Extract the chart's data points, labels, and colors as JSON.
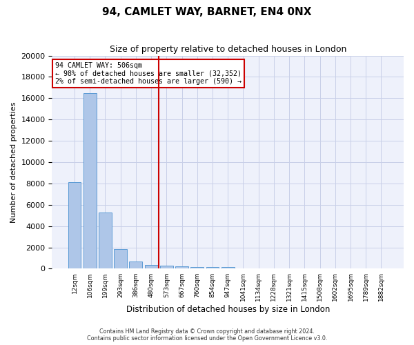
{
  "title": "94, CAMLET WAY, BARNET, EN4 0NX",
  "subtitle": "Size of property relative to detached houses in London",
  "xlabel": "Distribution of detached houses by size in London",
  "ylabel": "Number of detached properties",
  "bar_values": [
    8100,
    16500,
    5300,
    1850,
    650,
    330,
    290,
    230,
    185,
    185,
    145,
    0,
    0,
    0,
    0,
    0,
    0,
    0,
    0,
    0,
    0
  ],
  "categories": [
    "12sqm",
    "106sqm",
    "199sqm",
    "293sqm",
    "386sqm",
    "480sqm",
    "573sqm",
    "667sqm",
    "760sqm",
    "854sqm",
    "947sqm",
    "1041sqm",
    "1134sqm",
    "1228sqm",
    "1321sqm",
    "1415sqm",
    "1508sqm",
    "1602sqm",
    "1695sqm",
    "1789sqm",
    "1882sqm"
  ],
  "bar_color": "#aec6e8",
  "bar_edge_color": "#5b9bd5",
  "vline_x": 5.5,
  "vline_color": "#cc0000",
  "annotation_box_color": "#cc0000",
  "annotation_title": "94 CAMLET WAY: 506sqm",
  "annotation_line1": "← 98% of detached houses are smaller (32,352)",
  "annotation_line2": "2% of semi-detached houses are larger (590) →",
  "ylim": [
    0,
    20000
  ],
  "yticks": [
    0,
    2000,
    4000,
    6000,
    8000,
    10000,
    12000,
    14000,
    16000,
    18000,
    20000
  ],
  "footer_line1": "Contains HM Land Registry data © Crown copyright and database right 2024.",
  "footer_line2": "Contains public sector information licensed under the Open Government Licence v3.0.",
  "background_color": "#eef1fb",
  "grid_color": "#c8cfe8",
  "fig_width": 6.0,
  "fig_height": 5.0
}
